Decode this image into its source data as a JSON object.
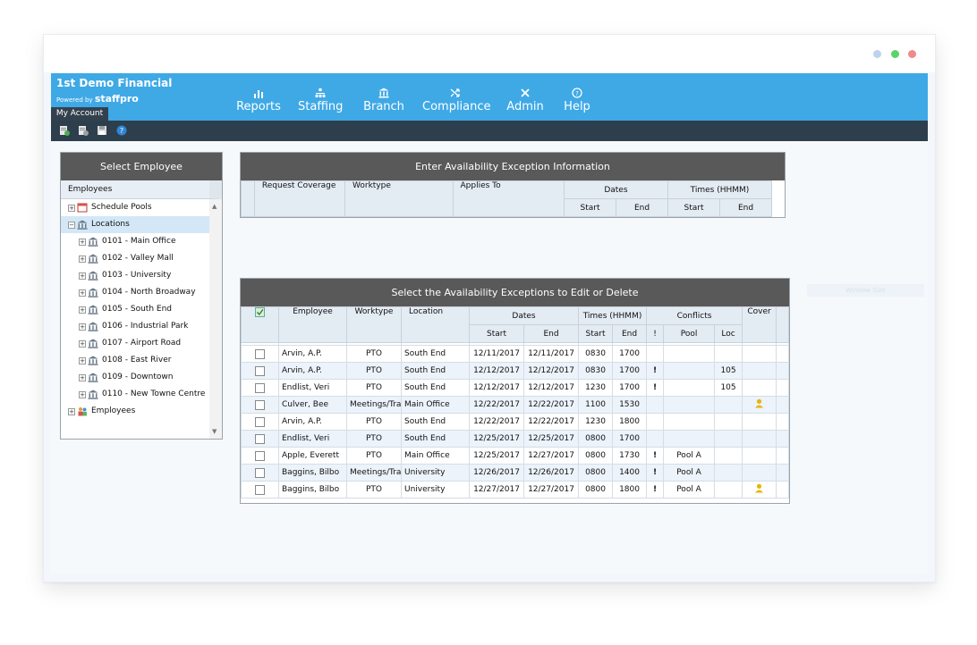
{
  "app": {
    "company": "1st Demo Financial",
    "powered_prefix": "Powered by",
    "powered_brand": "staffpro",
    "my_account": "My Account",
    "faint_label": "Window Size"
  },
  "nav": [
    {
      "label": "Reports",
      "icon": "reports-icon"
    },
    {
      "label": "Staffing",
      "icon": "staffing-icon"
    },
    {
      "label": "Branch",
      "icon": "branch-icon"
    },
    {
      "label": "Compliance",
      "icon": "compliance-icon"
    },
    {
      "label": "Admin",
      "icon": "admin-icon"
    },
    {
      "label": "Help",
      "icon": "help-icon"
    }
  ],
  "employee_panel": {
    "title": "Select Employee",
    "column": "Employees",
    "tree": [
      {
        "label": "Schedule Pools",
        "level": 0,
        "icon": "calendar-icon"
      },
      {
        "label": "Locations",
        "level": 0,
        "icon": "bank-icon",
        "selected": true
      },
      {
        "label": "0101 - Main Office",
        "level": 1,
        "icon": "bank-icon"
      },
      {
        "label": "0102 - Valley Mall",
        "level": 1,
        "icon": "bank-icon"
      },
      {
        "label": "0103 - University",
        "level": 1,
        "icon": "bank-icon"
      },
      {
        "label": "0104 - North Broadway",
        "level": 1,
        "icon": "bank-icon"
      },
      {
        "label": "0105 - South End",
        "level": 1,
        "icon": "bank-icon"
      },
      {
        "label": "0106 - Industrial Park",
        "level": 1,
        "icon": "bank-icon"
      },
      {
        "label": "0107 - Airport Road",
        "level": 1,
        "icon": "bank-icon"
      },
      {
        "label": "0108 - East River",
        "level": 1,
        "icon": "bank-icon"
      },
      {
        "label": "0109 - Downtown",
        "level": 1,
        "icon": "bank-icon"
      },
      {
        "label": "0110 - New Towne Centre",
        "level": 1,
        "icon": "bank-icon"
      },
      {
        "label": "Employees",
        "level": 0,
        "icon": "people-icon"
      }
    ]
  },
  "entry_panel": {
    "title": "Enter Availability Exception Information",
    "headers": {
      "request": "Request Coverage",
      "worktype": "Worktype",
      "applies": "Applies To",
      "dates": "Dates",
      "times": "Times (HHMM)",
      "start": "Start",
      "end": "End"
    }
  },
  "list_panel": {
    "title": "Select the Availability Exceptions to Edit or Delete",
    "headers": {
      "employee": "Employee",
      "worktype": "Worktype",
      "location": "Location",
      "dates": "Dates",
      "times": "Times (HHMM)",
      "conflicts": "Conflicts",
      "cover": "Cover",
      "start": "Start",
      "end": "End",
      "excl": "!",
      "pool": "Pool",
      "loc": "Loc"
    },
    "rows": [
      {
        "employee": "Arvin, A.P.",
        "worktype": "PTO",
        "location": "South End",
        "date_start": "12/11/2017",
        "date_end": "12/11/2017",
        "time_start": "0830",
        "time_end": "1700",
        "excl": "",
        "pool": "",
        "loc": "",
        "cover": ""
      },
      {
        "employee": "Arvin, A.P.",
        "worktype": "PTO",
        "location": "South End",
        "date_start": "12/12/2017",
        "date_end": "12/12/2017",
        "time_start": "0830",
        "time_end": "1700",
        "excl": "!",
        "pool": "",
        "loc": "105",
        "cover": ""
      },
      {
        "employee": "Endlist, Veri",
        "worktype": "PTO",
        "location": "South End",
        "date_start": "12/12/2017",
        "date_end": "12/12/2017",
        "time_start": "1230",
        "time_end": "1700",
        "excl": "!",
        "pool": "",
        "loc": "105",
        "cover": ""
      },
      {
        "employee": "Culver, Bee",
        "worktype": "Meetings/Trai",
        "location": "Main Office",
        "date_start": "12/22/2017",
        "date_end": "12/22/2017",
        "time_start": "1100",
        "time_end": "1530",
        "excl": "",
        "pool": "",
        "loc": "",
        "cover": "person"
      },
      {
        "employee": "Arvin, A.P.",
        "worktype": "PTO",
        "location": "South End",
        "date_start": "12/22/2017",
        "date_end": "12/22/2017",
        "time_start": "1230",
        "time_end": "1800",
        "excl": "",
        "pool": "",
        "loc": "",
        "cover": ""
      },
      {
        "employee": "Endlist, Veri",
        "worktype": "PTO",
        "location": "South End",
        "date_start": "12/25/2017",
        "date_end": "12/25/2017",
        "time_start": "0800",
        "time_end": "1700",
        "excl": "",
        "pool": "",
        "loc": "",
        "cover": ""
      },
      {
        "employee": "Apple, Everett",
        "worktype": "PTO",
        "location": "Main Office",
        "date_start": "12/25/2017",
        "date_end": "12/27/2017",
        "time_start": "0800",
        "time_end": "1730",
        "excl": "!",
        "pool": "Pool A",
        "loc": "",
        "cover": ""
      },
      {
        "employee": "Baggins, Bilbo",
        "worktype": "Meetings/Trai",
        "location": "University",
        "date_start": "12/26/2017",
        "date_end": "12/26/2017",
        "time_start": "0800",
        "time_end": "1400",
        "excl": "!",
        "pool": "Pool A",
        "loc": "",
        "cover": ""
      },
      {
        "employee": "Baggins, Bilbo",
        "worktype": "PTO",
        "location": "University",
        "date_start": "12/27/2017",
        "date_end": "12/27/2017",
        "time_start": "0800",
        "time_end": "1800",
        "excl": "!",
        "pool": "Pool A",
        "loc": "",
        "cover": "person"
      }
    ]
  },
  "colors": {
    "top_bar": "#3fa9e6",
    "toolbar": "#2d3e4c",
    "panel_header": "#595959",
    "alert": "#e01a1a",
    "cover_icon": "#e8b500"
  }
}
